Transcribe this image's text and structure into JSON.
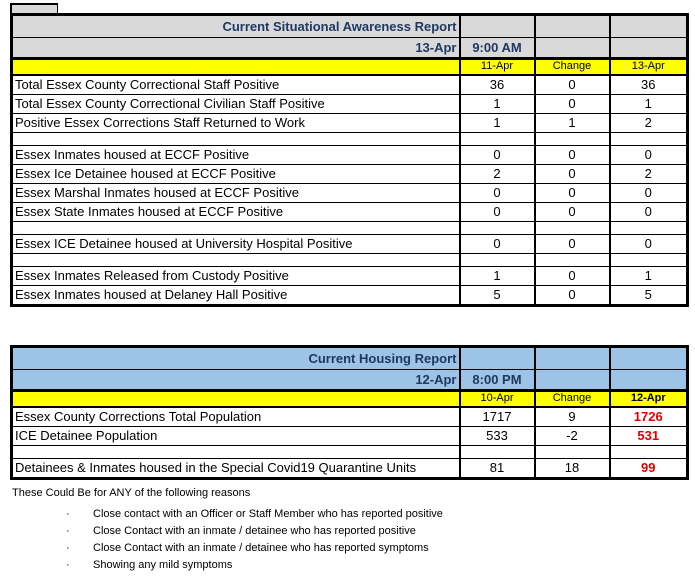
{
  "report1": {
    "title": "Current Situational Awareness Report",
    "date": "13-Apr",
    "time": "9:00 AM",
    "columns": [
      "11-Apr",
      "Change",
      "13-Apr"
    ],
    "rows": [
      {
        "label": "Total Essex County Correctional Staff Positive",
        "v1": "36",
        "chg": "0",
        "v2": "36"
      },
      {
        "label": "Total Essex County Correctional Civilian Staff Positive",
        "v1": "1",
        "chg": "0",
        "v2": "1"
      },
      {
        "label": "Positive Essex Corrections Staff Returned to Work",
        "v1": "1",
        "chg": "1",
        "v2": "2"
      },
      {
        "empty": true
      },
      {
        "label": "Essex Inmates housed at ECCF Positive",
        "v1": "0",
        "chg": "0",
        "v2": "0"
      },
      {
        "label": "Essex Ice Detainee housed at ECCF Positive",
        "v1": "2",
        "chg": "0",
        "v2": "2"
      },
      {
        "label": "Essex Marshal Inmates housed at ECCF Positive",
        "v1": "0",
        "chg": "0",
        "v2": "0"
      },
      {
        "label": "Essex State Inmates housed at ECCF Positive",
        "v1": "0",
        "chg": "0",
        "v2": "0"
      },
      {
        "empty": true
      },
      {
        "label": "Essex ICE Detainee housed at University Hospital Positive",
        "v1": "0",
        "chg": "0",
        "v2": "0"
      },
      {
        "empty": true
      },
      {
        "label": "Essex Inmates Released from Custody Positive",
        "v1": "1",
        "chg": "0",
        "v2": "1"
      },
      {
        "label": "Essex Inmates housed at Delaney Hall Positive",
        "v1": "5",
        "chg": "0",
        "v2": "5"
      }
    ]
  },
  "report2": {
    "title": "Current Housing Report",
    "date": "12-Apr",
    "time": "8:00 PM",
    "columns": [
      "10-Apr",
      "Change",
      "12-Apr"
    ],
    "rows": [
      {
        "label": "Essex County Corrections Total Population",
        "v1": "1717",
        "chg": "9",
        "v2": "1726",
        "highlight": true
      },
      {
        "label": "ICE Detainee Population",
        "v1": "533",
        "chg": "-2",
        "v2": "531",
        "highlight": true
      },
      {
        "empty": true
      },
      {
        "label": "Detainees & Inmates  housed in the Special Covid19 Quarantine Units",
        "v1": "81",
        "chg": "18",
        "v2": "99",
        "highlight": true
      }
    ]
  },
  "footer": {
    "intro": "These Could Be for ANY of the following reasons",
    "bullet_char": "·",
    "bullets": [
      "Close contact with an Officer or Staff Member who has reported positive",
      "Close Contact with an inmate / detainee who has reported positive",
      "Close Contact with an inmate / detainee who has reported symptoms",
      "Showing any mild symptoms"
    ]
  },
  "colors": {
    "table1_header": "#D9D9D9",
    "table2_header": "#9DC3E6",
    "column_header": "#FFFF00",
    "title_text": "#1F3864",
    "highlight_value": "#E00000",
    "border": "#000000"
  }
}
